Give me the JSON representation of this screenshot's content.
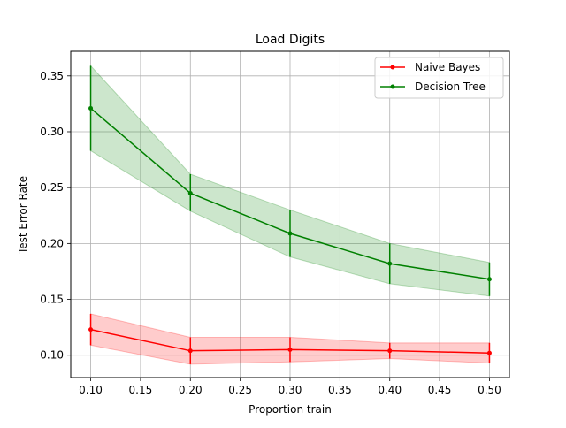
{
  "chart_data": {
    "type": "line",
    "title": "Load Digits",
    "xlabel": "Proportion train",
    "ylabel": "Test Error Rate",
    "xlim": [
      0.08,
      0.52
    ],
    "ylim": [
      0.08,
      0.372
    ],
    "grid": true,
    "legend_position": "top-right",
    "x_ticks": [
      0.1,
      0.15,
      0.2,
      0.25,
      0.3,
      0.35,
      0.4,
      0.45,
      0.5
    ],
    "x_tick_labels": [
      "0.10",
      "0.15",
      "0.20",
      "0.25",
      "0.30",
      "0.35",
      "0.40",
      "0.45",
      "0.50"
    ],
    "y_ticks": [
      0.1,
      0.15,
      0.2,
      0.25,
      0.3,
      0.35
    ],
    "y_tick_labels": [
      "0.10",
      "0.15",
      "0.20",
      "0.25",
      "0.30",
      "0.35"
    ],
    "x": [
      0.1,
      0.2,
      0.3,
      0.4,
      0.5
    ],
    "series": [
      {
        "name": "Naive Bayes",
        "color": "#ff0000",
        "values": [
          0.123,
          0.104,
          0.105,
          0.104,
          0.102
        ],
        "lower": [
          0.109,
          0.092,
          0.094,
          0.097,
          0.093
        ],
        "upper": [
          0.137,
          0.116,
          0.116,
          0.111,
          0.111
        ]
      },
      {
        "name": "Decision Tree",
        "color": "#008000",
        "values": [
          0.321,
          0.245,
          0.209,
          0.182,
          0.168
        ],
        "lower": [
          0.283,
          0.229,
          0.188,
          0.164,
          0.153
        ],
        "upper": [
          0.359,
          0.262,
          0.23,
          0.2,
          0.183
        ]
      }
    ]
  }
}
